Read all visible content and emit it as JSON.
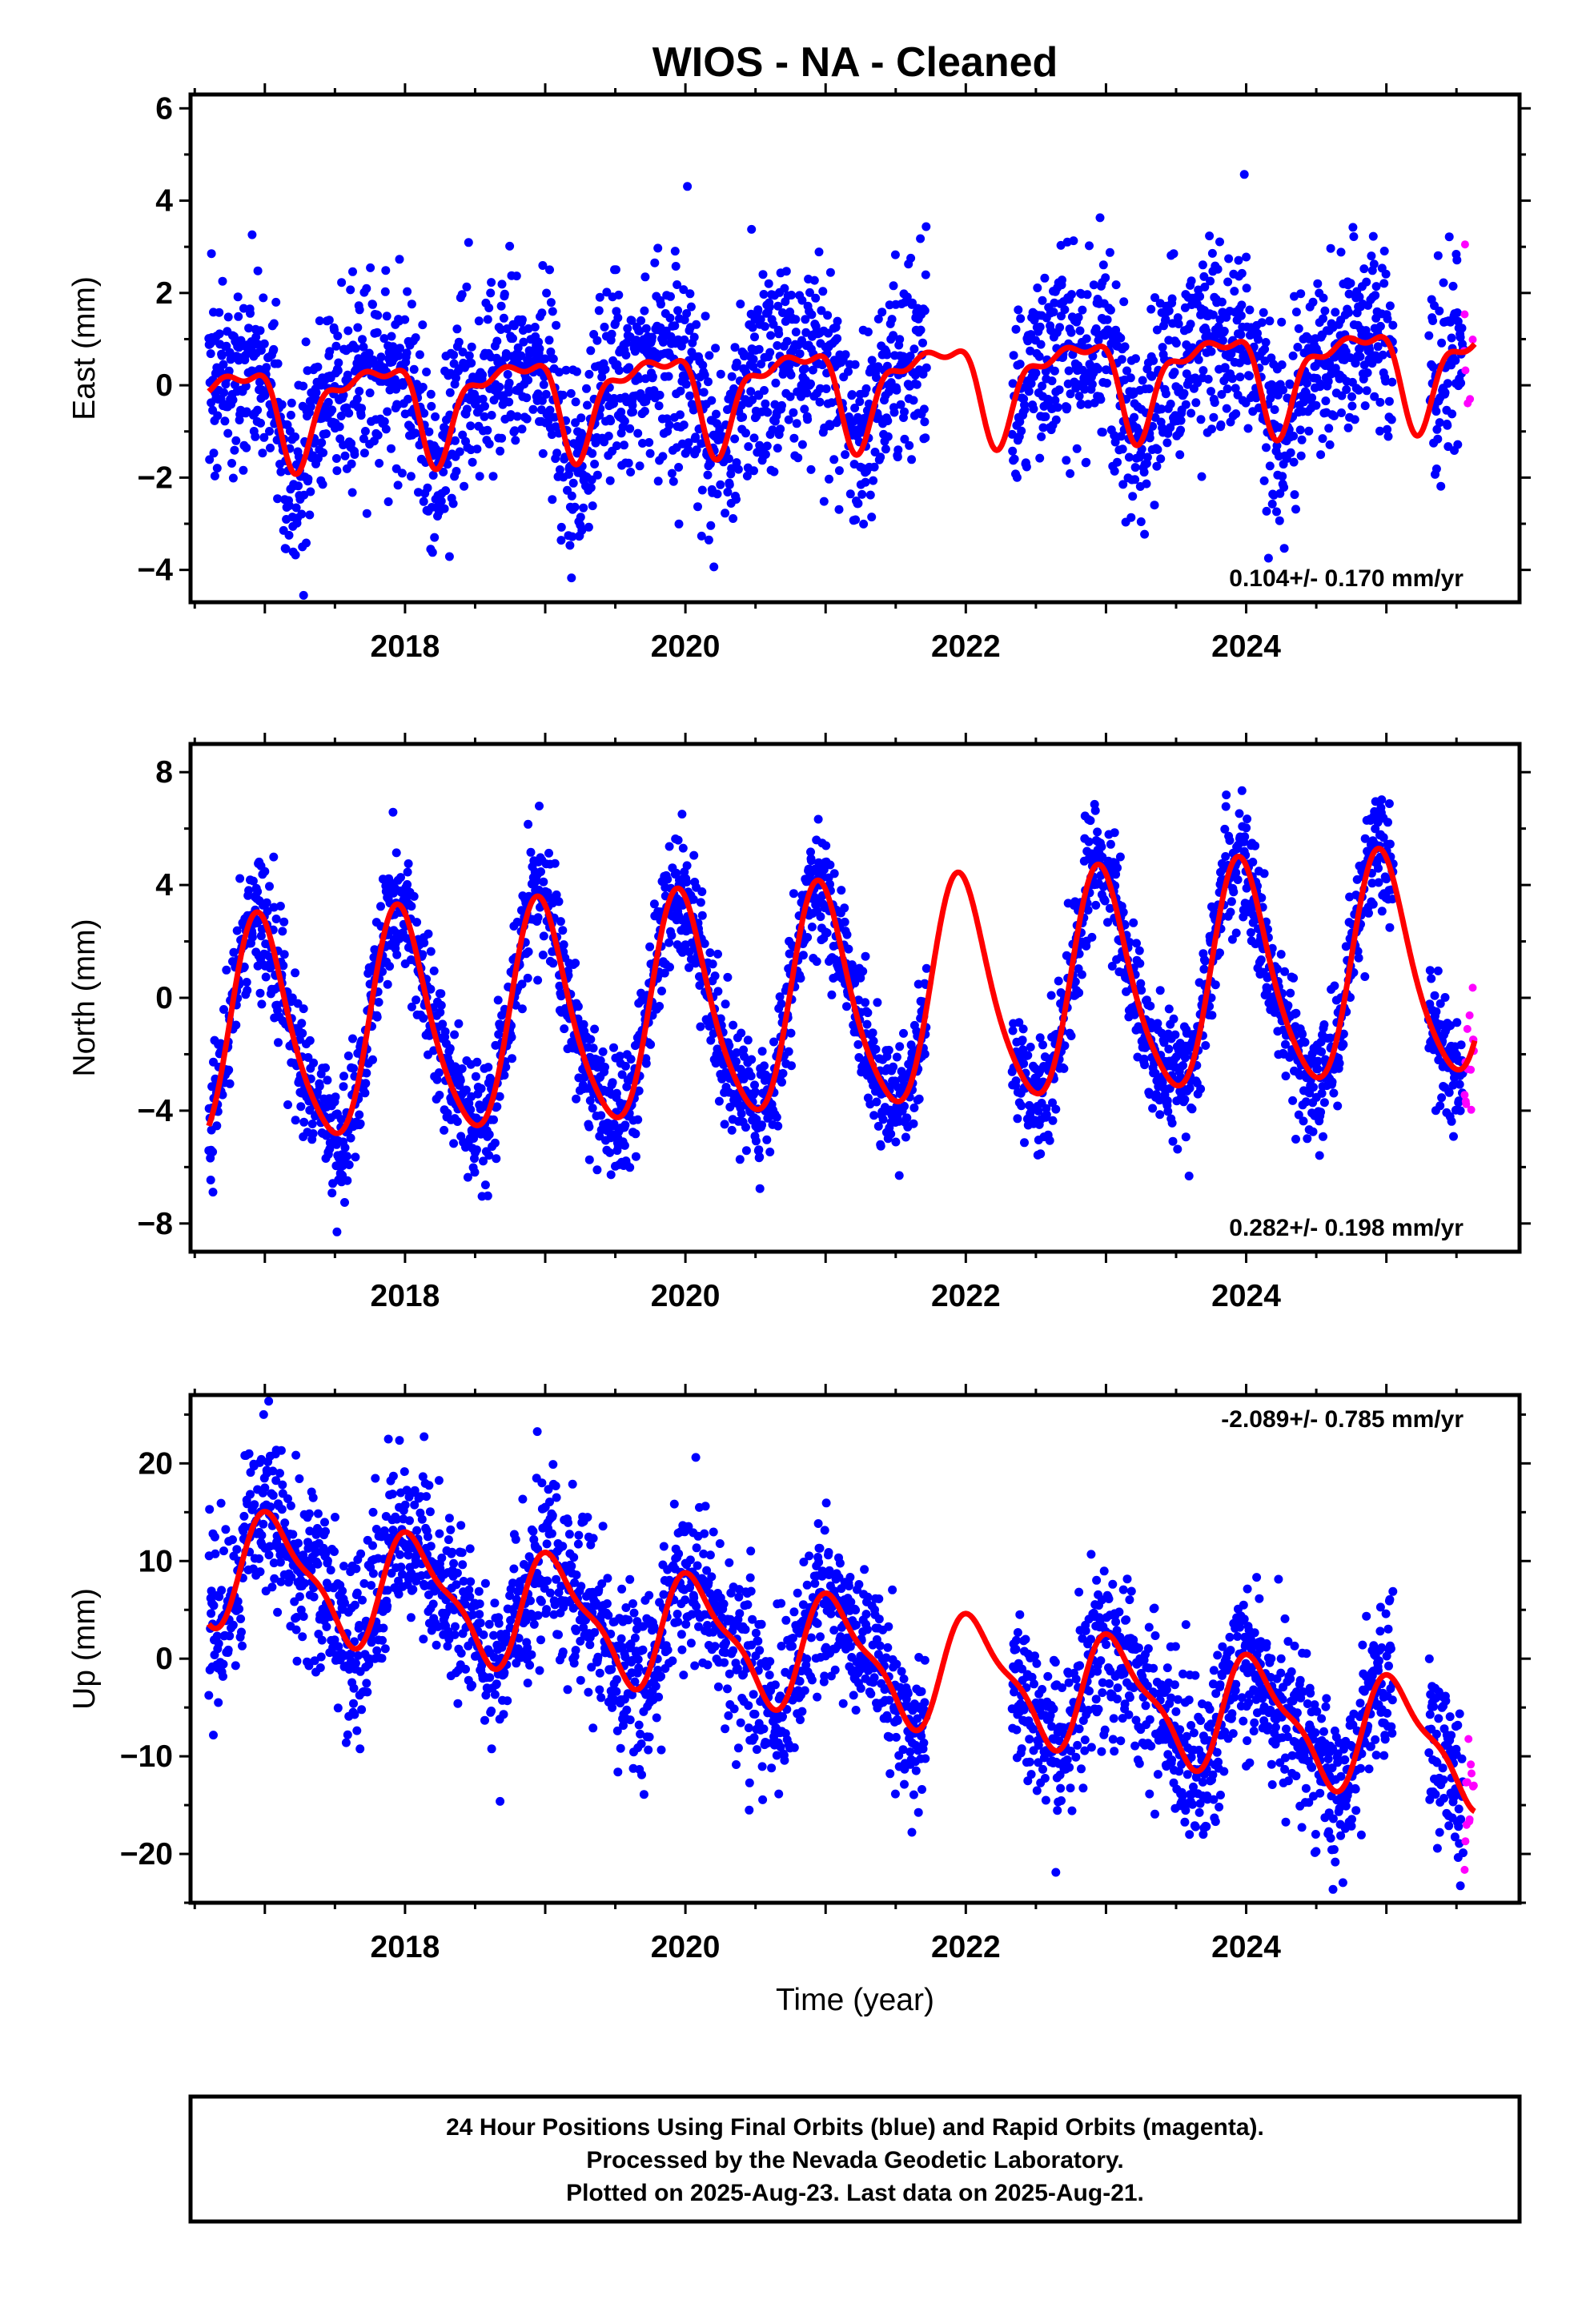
{
  "title": "WIOS  - NA - Cleaned",
  "x_axis_label": "Time (year)",
  "footer": [
    "24 Hour Positions Using Final Orbits (blue) and Rapid Orbits (magenta).",
    "Processed by the Nevada Geodetic Laboratory.",
    "Plotted on 2025-Aug-23. Last data on 2025-Aug-21."
  ],
  "colors": {
    "final_orbits": "#0000ff",
    "rapid_orbits": "#ff00ff",
    "model": "#ff0000",
    "frame": "#000000"
  },
  "chart_data": [
    {
      "type": "scatter",
      "ylabel": "East (mm)",
      "rate_label": "0.104+/- 0.170 mm/yr",
      "rate_placement": "bottom-right",
      "xlim": [
        2016.47,
        2025.95
      ],
      "ylim": [
        -4.7,
        6.3
      ],
      "xticks": [
        2018,
        2020,
        2022,
        2024
      ],
      "xtick_labels": [
        "2018",
        "2020",
        "2022",
        "2024"
      ],
      "yticks": [
        -4,
        -2,
        0,
        2,
        4,
        6
      ],
      "ytick_labels": [
        "−4",
        "−2",
        "0",
        "2",
        "4",
        "6"
      ],
      "data_start": 2016.6,
      "data_end": 2025.63,
      "gaps": [
        [
          2021.72,
          2022.33
        ],
        [
          2025.05,
          2025.3
        ]
      ],
      "rapid_start": 2025.55,
      "scatter_sigma": 1.05,
      "model": {
        "offset": 0.0,
        "trend": 0.104,
        "ref_year": 2021.0,
        "harmonics": [
          {
            "amp": 0.85,
            "phase": 1.57,
            "freq": 1
          },
          {
            "amp": 0.45,
            "phase": 0.4,
            "freq": 2
          },
          {
            "amp": 0.25,
            "phase": -0.9,
            "freq": 3
          }
        ]
      }
    },
    {
      "type": "scatter",
      "ylabel": "North (mm)",
      "rate_label": "0.282+/- 0.198 mm/yr",
      "rate_placement": "bottom-right",
      "xlim": [
        2016.47,
        2025.95
      ],
      "ylim": [
        -9.0,
        9.0
      ],
      "xticks": [
        2018,
        2020,
        2022,
        2024
      ],
      "xtick_labels": [
        "2018",
        "2020",
        "2022",
        "2024"
      ],
      "yticks": [
        -8,
        -4,
        0,
        4,
        8
      ],
      "ytick_labels": [
        "−8",
        "−4",
        "0",
        "4",
        "8"
      ],
      "data_start": 2016.6,
      "data_end": 2025.63,
      "gaps": [
        [
          2021.72,
          2022.33
        ],
        [
          2025.05,
          2025.3
        ]
      ],
      "rapid_start": 2025.55,
      "scatter_sigma": 1.1,
      "model": {
        "offset": -0.2,
        "trend": 0.282,
        "ref_year": 2021.0,
        "harmonics": [
          {
            "amp": 3.9,
            "phase": 0.2,
            "freq": 1
          },
          {
            "amp": 0.6,
            "phase": 1.2,
            "freq": 2
          }
        ]
      }
    },
    {
      "type": "scatter",
      "ylabel": "Up (mm)",
      "rate_label": "-2.089+/- 0.785 mm/yr",
      "rate_placement": "top-right",
      "xlim": [
        2016.47,
        2025.95
      ],
      "ylim": [
        -25.0,
        27.0
      ],
      "xticks": [
        2018,
        2020,
        2022,
        2024
      ],
      "xtick_labels": [
        "2018",
        "2020",
        "2022",
        "2024"
      ],
      "yticks": [
        -20,
        -10,
        0,
        10,
        20
      ],
      "ytick_labels": [
        "−20",
        "−10",
        "0",
        "10",
        "20"
      ],
      "data_start": 2016.6,
      "data_end": 2025.63,
      "gaps": [
        [
          2021.72,
          2022.33
        ],
        [
          2025.05,
          2025.3
        ]
      ],
      "rapid_start": 2025.55,
      "scatter_sigma": 4.3,
      "model": {
        "offset": 0.5,
        "trend": -2.089,
        "ref_year": 2021.0,
        "harmonics": [
          {
            "amp": 5.5,
            "phase": -0.5,
            "freq": 1
          },
          {
            "amp": 1.8,
            "phase": 0.7,
            "freq": 2
          }
        ]
      }
    }
  ]
}
